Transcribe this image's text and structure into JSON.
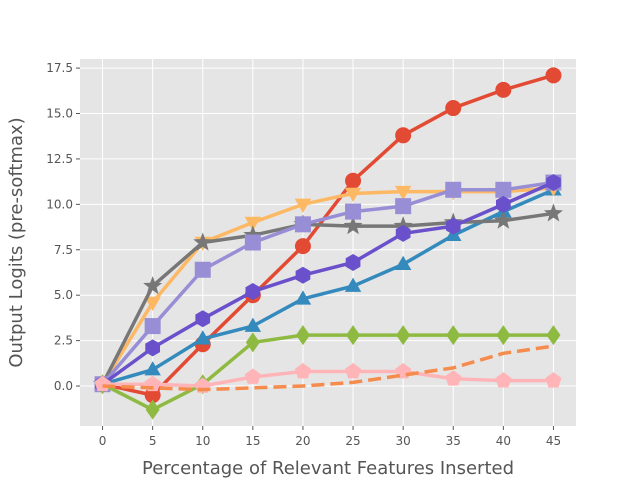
{
  "chart_data": {
    "type": "line",
    "xlabel": "Percentage of Relevant Features Inserted",
    "ylabel": "Output Logits (pre-softmax)",
    "x": [
      0,
      5,
      10,
      15,
      20,
      25,
      30,
      35,
      40,
      45
    ],
    "xticks": [
      "0",
      "5",
      "10",
      "15",
      "20",
      "25",
      "30",
      "35",
      "40",
      "45"
    ],
    "yticks": [
      "0.0",
      "2.5",
      "5.0",
      "7.5",
      "10.0",
      "12.5",
      "15.0",
      "17.5"
    ],
    "ytick_values": [
      0,
      2.5,
      5,
      7.5,
      10,
      12.5,
      15,
      17.5
    ],
    "xlim": [
      -2.25,
      47.25
    ],
    "ylim": [
      -2.2,
      18.0
    ],
    "grid": true,
    "background": "#e5e5e5",
    "series": [
      {
        "color": "#e24a33",
        "marker": "circle",
        "dash": false,
        "values": [
          0.1,
          -0.5,
          2.3,
          5.0,
          7.7,
          11.3,
          13.8,
          15.3,
          16.3,
          17.1
        ]
      },
      {
        "color": "#348abd",
        "marker": "triangle-up",
        "dash": false,
        "values": [
          0.1,
          0.9,
          2.6,
          3.3,
          4.8,
          5.5,
          6.7,
          8.3,
          9.6,
          10.8
        ]
      },
      {
        "color": "#fdb863",
        "marker": "triangle-down",
        "dash": false,
        "values": [
          0.1,
          4.6,
          7.9,
          9.0,
          10.0,
          10.6,
          10.7,
          10.7,
          10.7,
          10.9
        ]
      },
      {
        "color": "#777777",
        "marker": "star",
        "dash": false,
        "values": [
          0.1,
          5.5,
          7.9,
          8.3,
          8.9,
          8.8,
          8.8,
          9.0,
          9.1,
          9.5
        ]
      },
      {
        "color": "#988ed5",
        "marker": "square",
        "dash": false,
        "values": [
          0.1,
          3.3,
          6.4,
          7.9,
          8.9,
          9.6,
          9.9,
          10.8,
          10.8,
          11.2
        ]
      },
      {
        "color": "#6a51cb",
        "marker": "hexagon",
        "dash": false,
        "values": [
          0.1,
          2.1,
          3.7,
          5.2,
          6.1,
          6.8,
          8.4,
          8.8,
          10.0,
          11.2
        ]
      },
      {
        "color": "#8eba42",
        "marker": "diamond",
        "dash": false,
        "values": [
          0.1,
          -1.3,
          0.1,
          2.4,
          2.8,
          2.8,
          2.8,
          2.8,
          2.8,
          2.8
        ]
      },
      {
        "color": "#ffb5b8",
        "marker": "pentagon",
        "dash": false,
        "values": [
          0.1,
          0.1,
          0.0,
          0.5,
          0.8,
          0.8,
          0.8,
          0.4,
          0.3,
          0.3
        ]
      },
      {
        "color": "#f58b4c",
        "marker": "none",
        "dash": true,
        "values": [
          0.0,
          -0.1,
          -0.2,
          -0.1,
          0.0,
          0.2,
          0.6,
          1.0,
          1.8,
          2.2
        ]
      }
    ]
  }
}
